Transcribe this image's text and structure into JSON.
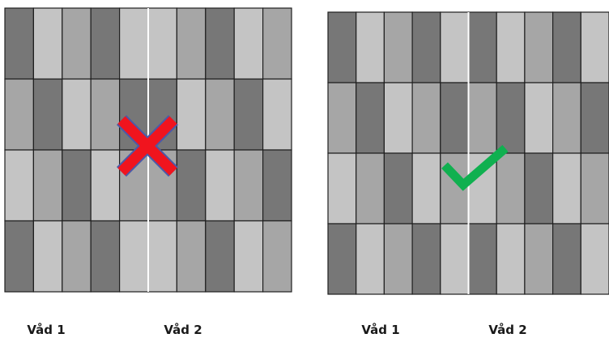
{
  "palette": {
    "dark": "#777777",
    "medium": "#a6a6a6",
    "light": "#c4c4c4",
    "grid_line": "#1f1f1f",
    "seam_line": "#ffffff"
  },
  "panels": [
    {
      "verdict": "incorrect",
      "mark_icon": "red-x-icon",
      "mark_color": "#f0141e",
      "mark_outline": "#4a5aa8",
      "rows": [
        [
          3,
          1,
          2,
          3,
          1,
          1,
          2,
          3,
          1,
          2
        ],
        [
          2,
          3,
          1,
          2,
          3,
          3,
          1,
          2,
          3,
          1
        ],
        [
          1,
          2,
          3,
          1,
          2,
          2,
          3,
          1,
          2,
          3
        ],
        [
          3,
          1,
          2,
          3,
          1,
          1,
          2,
          3,
          1,
          2
        ]
      ],
      "labels": [
        "Våd 1",
        "Våd 2"
      ]
    },
    {
      "verdict": "correct",
      "mark_icon": "green-checkmark-icon",
      "mark_color": "#10b050",
      "rows": [
        [
          3,
          1,
          2,
          3,
          1,
          3,
          1,
          2,
          3,
          1
        ],
        [
          2,
          3,
          1,
          2,
          3,
          2,
          3,
          1,
          2,
          3
        ],
        [
          1,
          2,
          3,
          1,
          2,
          1,
          2,
          3,
          1,
          2
        ],
        [
          3,
          1,
          2,
          3,
          1,
          3,
          1,
          2,
          3,
          1
        ]
      ],
      "labels": [
        "Våd 1",
        "Våd 2"
      ]
    }
  ]
}
